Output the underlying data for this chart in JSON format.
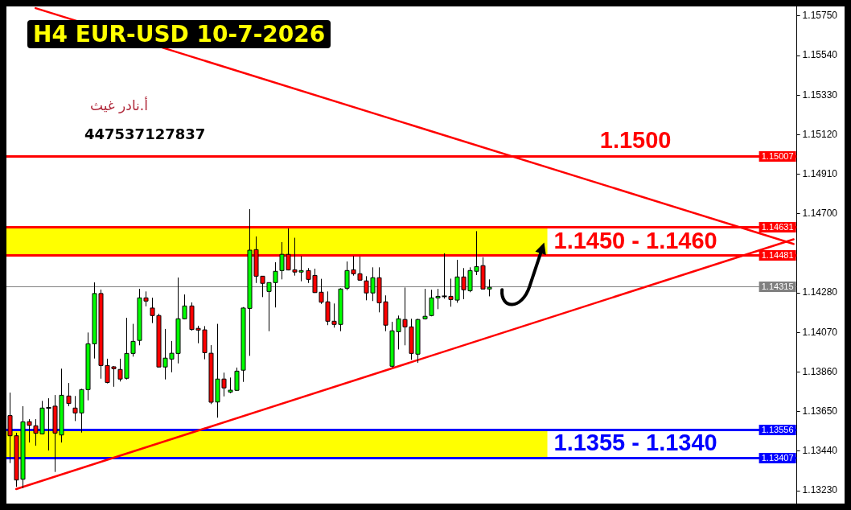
{
  "chart_data": {
    "type": "candlestick",
    "title": "H4 EUR-USD 10-7-2026",
    "annotations": [
      "أ.نادر غيث",
      "447537127837",
      {
        "text": "1.1500",
        "y": 1.15007
      }
    ],
    "categories": [
      null,
      null,
      null,
      null,
      null,
      null,
      null,
      null,
      null,
      null,
      null,
      null,
      null,
      null,
      null,
      null,
      null,
      null,
      null,
      null,
      null,
      null,
      null,
      null,
      null,
      null,
      null,
      null,
      null,
      null,
      null,
      null,
      null,
      null,
      null,
      null,
      null,
      null,
      null,
      null,
      null,
      null,
      null,
      null,
      null,
      null,
      null,
      null,
      null,
      null,
      null,
      null,
      null,
      null,
      null,
      null,
      null,
      null,
      null,
      null,
      null,
      null,
      null,
      null,
      null,
      null,
      null,
      null,
      null,
      null,
      null,
      null,
      null,
      null,
      null,
      null,
      null,
      null,
      null,
      null,
      null,
      null,
      null,
      null,
      null,
      null,
      null,
      null,
      null,
      null,
      null,
      null,
      null,
      null,
      null,
      null,
      null,
      null,
      null,
      null,
      null,
      null,
      null,
      null,
      null,
      null,
      null,
      null,
      null,
      null,
      null,
      null,
      null,
      null,
      null,
      null,
      null,
      null,
      null,
      null,
      null,
      null
    ],
    "ohlc": [
      [
        1.13629,
        1.13751,
        1.13377,
        1.13522
      ],
      [
        1.13522,
        1.13538,
        1.13251,
        1.13287
      ],
      [
        1.13291,
        1.13679,
        1.13244,
        1.13596
      ],
      [
        1.13597,
        1.1361,
        1.13486,
        1.13577
      ],
      [
        1.13575,
        1.1361,
        1.13469,
        1.13535
      ],
      [
        1.13532,
        1.13707,
        1.13529,
        1.13669
      ],
      [
        1.1367,
        1.13721,
        1.13444,
        1.1367
      ],
      [
        1.13679,
        1.13738,
        1.1333,
        1.13536
      ],
      [
        1.13526,
        1.13878,
        1.13486,
        1.13737
      ],
      [
        1.13733,
        1.13802,
        1.13679,
        1.13693
      ],
      [
        1.13669,
        1.13733,
        1.136,
        1.13643
      ],
      [
        1.13643,
        1.13771,
        1.13539,
        1.13767
      ],
      [
        1.13767,
        1.1407,
        1.1371,
        1.1401
      ],
      [
        1.1401,
        1.14336,
        1.13932,
        1.14277
      ],
      [
        1.14277,
        1.14298,
        1.13825,
        1.13895
      ],
      [
        1.13895,
        1.13931,
        1.138,
        1.13805
      ],
      [
        1.13888,
        1.13892,
        1.13782,
        1.13878
      ],
      [
        1.13874,
        1.13931,
        1.1381,
        1.13823
      ],
      [
        1.13827,
        1.14148,
        1.13821,
        1.13959
      ],
      [
        1.13959,
        1.14116,
        1.13942,
        1.14023
      ],
      [
        1.14028,
        1.14302,
        1.14002,
        1.14254
      ],
      [
        1.14254,
        1.14288,
        1.14209,
        1.14237
      ],
      [
        1.142,
        1.14255,
        1.1412,
        1.1416
      ],
      [
        1.1416,
        1.1417,
        1.13885,
        1.13887
      ],
      [
        1.13887,
        1.14089,
        1.13821,
        1.13934
      ],
      [
        1.13929,
        1.14025,
        1.13859,
        1.1396
      ],
      [
        1.13959,
        1.14362,
        1.13906,
        1.14143
      ],
      [
        1.14143,
        1.14272,
        1.1414,
        1.14211
      ],
      [
        1.14211,
        1.1423,
        1.1408,
        1.14086
      ],
      [
        1.14092,
        1.14106,
        1.14013,
        1.14083
      ],
      [
        1.14084,
        1.14104,
        1.13928,
        1.13963
      ],
      [
        1.1396,
        1.14003,
        1.1369,
        1.137
      ],
      [
        1.13701,
        1.14116,
        1.13618,
        1.13823
      ],
      [
        1.13823,
        1.13857,
        1.13731,
        1.13776
      ],
      [
        1.13754,
        1.13831,
        1.13748,
        1.13764
      ],
      [
        1.13763,
        1.13884,
        1.1376,
        1.13865
      ],
      [
        1.1387,
        1.14205,
        1.13808,
        1.142
      ],
      [
        1.14198,
        1.14725,
        1.13946,
        1.14507
      ],
      [
        1.1451,
        1.1458,
        1.14333,
        1.14369
      ],
      [
        1.14369,
        1.1437,
        1.14258,
        1.14331
      ],
      [
        1.14288,
        1.14335,
        1.14077,
        1.14335
      ],
      [
        1.14335,
        1.14443,
        1.14203,
        1.14395
      ],
      [
        1.14399,
        1.1455,
        1.14352,
        1.14485
      ],
      [
        1.14485,
        1.14622,
        1.144,
        1.14402
      ],
      [
        1.14403,
        1.14573,
        1.14372,
        1.14391
      ],
      [
        1.14391,
        1.14476,
        1.14342,
        1.14399
      ],
      [
        1.14399,
        1.14412,
        1.14333,
        1.14352
      ],
      [
        1.14373,
        1.14409,
        1.1428,
        1.14282
      ],
      [
        1.14284,
        1.14355,
        1.14222,
        1.14231
      ],
      [
        1.14233,
        1.14288,
        1.14109,
        1.1413
      ],
      [
        1.1413,
        1.14224,
        1.14096,
        1.14113
      ],
      [
        1.14113,
        1.14305,
        1.14077,
        1.14301
      ],
      [
        1.14305,
        1.14447,
        1.14295,
        1.14399
      ],
      [
        1.14403,
        1.14476,
        1.14372,
        1.14382
      ],
      [
        1.14382,
        1.14473,
        1.14345,
        1.14348
      ],
      [
        1.14344,
        1.14369,
        1.14241,
        1.1428
      ],
      [
        1.1428,
        1.14416,
        1.14237,
        1.14361
      ],
      [
        1.14361,
        1.14416,
        1.14177,
        1.14228
      ],
      [
        1.14233,
        1.14267,
        1.14077,
        1.14109
      ],
      [
        1.13891,
        1.14127,
        1.13885,
        1.14079
      ],
      [
        1.14074,
        1.1416,
        1.1398,
        1.14143
      ],
      [
        1.14139,
        1.14309,
        1.14002,
        1.141
      ],
      [
        1.141,
        1.14143,
        1.13925,
        1.13959
      ],
      [
        1.13955,
        1.14143,
        1.13909,
        1.14139
      ],
      [
        1.14143,
        1.14302,
        1.14139,
        1.14156
      ],
      [
        1.1416,
        1.14297,
        1.14156,
        1.14254
      ],
      [
        1.14254,
        1.14302,
        1.14194,
        1.14262
      ],
      [
        1.14262,
        1.1449,
        1.1425,
        1.14262
      ],
      [
        1.14262,
        1.14356,
        1.14207,
        1.14245
      ],
      [
        1.14242,
        1.14456,
        1.14228,
        1.14365
      ],
      [
        1.14365,
        1.14412,
        1.14247,
        1.14297
      ],
      [
        1.14292,
        1.14416,
        1.14284,
        1.14399
      ],
      [
        1.14395,
        1.14608,
        1.14375,
        1.1442
      ],
      [
        1.14425,
        1.1447,
        1.143,
        1.14301
      ],
      [
        1.14301,
        1.14352,
        1.14262,
        1.1431
      ],
      null,
      null,
      null,
      null,
      null,
      null,
      null,
      null,
      null,
      null,
      null,
      null,
      null,
      null,
      null,
      null,
      null,
      null,
      null,
      null,
      null,
      null,
      null,
      null,
      null,
      null,
      null,
      null,
      null,
      null,
      null,
      null,
      null,
      null,
      null,
      null,
      null,
      null,
      null,
      null,
      null,
      null,
      null,
      null,
      null,
      null,
      null
    ],
    "colors": [
      "#ff0000",
      "#ff0000",
      "#00ff00",
      "#ff0000",
      "#ff0000",
      "#00ff00",
      "#000000",
      "#ff0000",
      "#00ff00",
      "#ff0000",
      "#ff0000",
      "#00ff00",
      "#00ff00",
      "#00ff00",
      "#ff0000",
      "#ff0000",
      "#ff0000",
      "#ff0000",
      "#00ff00",
      "#00ff00",
      "#00ff00",
      "#ff0000",
      "#ff0000",
      "#ff0000",
      "#00ff00",
      "#00ff00",
      "#00ff00",
      "#00ff00",
      "#ff0000",
      "#ff0000",
      "#ff0000",
      "#ff0000",
      "#00ff00",
      "#ff0000",
      "#00ff00",
      "#00ff00",
      "#00ff00",
      "#00ff00",
      "#ff0000",
      "#ff0000",
      "#00ff00",
      "#00ff00",
      "#00ff00",
      "#ff0000",
      "#ff0000",
      "#00ff00",
      "#ff0000",
      "#ff0000",
      "#ff0000",
      "#ff0000",
      "#ff0000",
      "#00ff00",
      "#00ff00",
      "#ff0000",
      "#ff0000",
      "#ff0000",
      "#00ff00",
      "#ff0000",
      "#ff0000",
      "#00ff00",
      "#00ff00",
      "#ff0000",
      "#ff0000",
      "#00ff00",
      "#00ff00",
      "#00ff00",
      "#00ff00",
      "#000000",
      "#ff0000",
      "#00ff00",
      "#ff0000",
      "#00ff00",
      "#00ff00",
      "#ff0000",
      "#00ff00",
      null,
      null,
      null,
      null,
      null,
      null,
      null,
      null,
      null,
      null,
      null,
      null,
      null,
      null,
      null,
      null,
      null,
      null,
      null,
      null,
      null,
      null,
      null,
      null,
      null,
      null,
      null,
      null,
      null,
      null,
      null,
      null,
      null,
      null,
      null,
      null,
      null,
      null,
      null,
      null,
      null,
      null,
      null,
      null,
      null,
      null,
      null
    ],
    "series": [
      {
        "type": "line",
        "color": "#ff0000",
        "values": [
          null,
          null,
          null,
          null,
          1.15792,
          null,
          null,
          null,
          null,
          null,
          null,
          null,
          null,
          null,
          null,
          null,
          null,
          null,
          null,
          null,
          null,
          null,
          null,
          null,
          null,
          null,
          null,
          null,
          null,
          null,
          null,
          null,
          null,
          null,
          null,
          null,
          null,
          null,
          null,
          null,
          null,
          null,
          null,
          null,
          null,
          null,
          null,
          null,
          null,
          null,
          null,
          null,
          null,
          null,
          null,
          null,
          null,
          null,
          null,
          null,
          null,
          null,
          null,
          null,
          null,
          null,
          null,
          null,
          null,
          null,
          null,
          null,
          null,
          null,
          null,
          null,
          null,
          null,
          null,
          null,
          null,
          null,
          null,
          null,
          null,
          null,
          null,
          null,
          null,
          null,
          null,
          null,
          null,
          null,
          null,
          null,
          null,
          null,
          null,
          null,
          null,
          null,
          null,
          null,
          null,
          null,
          null,
          null,
          null,
          null,
          null,
          null,
          null,
          null,
          null,
          null,
          null,
          null,
          null,
          null,
          null,
          1.1454
        ]
      },
      {
        "type": "line",
        "color": "#ff0000",
        "values": [
          null,
          1.13239,
          null,
          null,
          null,
          null,
          null,
          null,
          null,
          null,
          null,
          null,
          null,
          null,
          null,
          null,
          null,
          null,
          null,
          null,
          null,
          null,
          null,
          null,
          null,
          null,
          null,
          null,
          null,
          null,
          null,
          null,
          null,
          null,
          null,
          null,
          null,
          null,
          null,
          null,
          null,
          null,
          null,
          null,
          null,
          null,
          null,
          null,
          null,
          null,
          null,
          null,
          null,
          null,
          null,
          null,
          null,
          null,
          null,
          null,
          null,
          null,
          null,
          null,
          null,
          null,
          null,
          null,
          null,
          null,
          null,
          null,
          null,
          null,
          null,
          null,
          null,
          null,
          null,
          null,
          null,
          null,
          null,
          null,
          null,
          null,
          null,
          null,
          null,
          null,
          null,
          null,
          null,
          null,
          null,
          null,
          null,
          null,
          null,
          null,
          null,
          null,
          null,
          null,
          null,
          null,
          null,
          null,
          null,
          null,
          null,
          null,
          null,
          null,
          null,
          null,
          null,
          null,
          null,
          null,
          null,
          1.14565
        ]
      }
    ],
    "ylim": [
      1.13162,
      1.15801
    ],
    "yticks": [
      {
        "value": 1.1323,
        "label": "1.13230"
      },
      {
        "value": 1.1344,
        "label": "1.13440"
      },
      {
        "value": 1.1365,
        "label": "1.13650"
      },
      {
        "value": 1.1386,
        "label": "1.13860"
      },
      {
        "value": 1.1407,
        "label": "1.14070"
      },
      {
        "value": 1.1428,
        "label": "1.14280"
      },
      {
        "value": 1.147,
        "label": "1.14700"
      },
      {
        "value": 1.1491,
        "label": "1.14910"
      },
      {
        "value": 1.1512,
        "label": "1.15120"
      },
      {
        "value": 1.1533,
        "label": "1.15330"
      },
      {
        "value": 1.1554,
        "label": "1.15540"
      },
      {
        "value": 1.1575,
        "label": "1.15750"
      }
    ],
    "tick_labels": "y",
    "ref_lines": [
      {
        "axis": "y",
        "value": 1.15007,
        "label": "1.15007",
        "color": "#ff0000"
      },
      {
        "axis": "y",
        "value": 1.14631,
        "label": "1.14631",
        "color": "#ff0000"
      },
      {
        "axis": "y",
        "value": 1.14481,
        "label": "1.14481",
        "color": "#ff0000"
      },
      {
        "axis": "y",
        "value": 1.14315,
        "label": "1.14315",
        "color": "#808080"
      },
      {
        "axis": "y",
        "value": 1.13556,
        "label": "1.13556",
        "color": "#0000ff"
      },
      {
        "axis": "y",
        "value": 1.13407,
        "label": "1.13407",
        "color": "#0000ff"
      }
    ],
    "bands": [
      {
        "axis": "y",
        "from": 1.14481,
        "to": 1.14631,
        "label": "1.1450 - 1.1460",
        "color": "#ffff00"
      },
      {
        "axis": "y",
        "from": 1.13407,
        "to": 1.13556,
        "label": "1.1355 - 1.1340",
        "color": "#ffff00"
      }
    ]
  }
}
